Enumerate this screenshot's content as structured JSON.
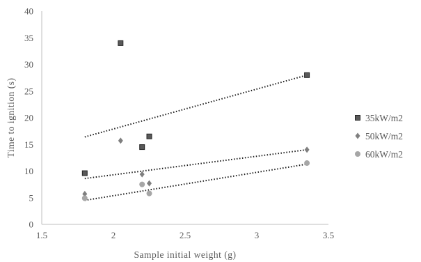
{
  "chart_data": {
    "type": "scatter",
    "title": "",
    "xlabel": "Sample initial weight (g)",
    "ylabel": "Time to ignition (s)",
    "xlim": [
      1.5,
      3.5
    ],
    "ylim": [
      0,
      40
    ],
    "x_ticks": [
      "1.5",
      "2",
      "2.5",
      "3",
      "3.5"
    ],
    "y_ticks": [
      "0",
      "5",
      "10",
      "15",
      "20",
      "25",
      "30",
      "35",
      "40"
    ],
    "grid": false,
    "legend_position": "right",
    "trendlines": "linear, dotted",
    "series": [
      {
        "name": "35kW/m2",
        "marker": "square",
        "color": "#595959",
        "x": [
          1.8,
          2.05,
          2.2,
          2.25,
          3.35
        ],
        "y": [
          9.6,
          34,
          14.5,
          16.5,
          28
        ],
        "trend": [
          [
            1.8,
            16.4
          ],
          [
            3.35,
            28
          ]
        ]
      },
      {
        "name": "50kW/m2",
        "marker": "diamond",
        "color": "#7f7f7f",
        "x": [
          1.8,
          2.05,
          2.2,
          2.25,
          3.35
        ],
        "y": [
          5.7,
          15.7,
          9.4,
          7.7,
          14
        ],
        "trend": [
          [
            1.8,
            8.6
          ],
          [
            3.35,
            14
          ]
        ]
      },
      {
        "name": "60kW/m2",
        "marker": "circle",
        "color": "#a6a6a6",
        "x": [
          1.8,
          2.2,
          2.25,
          3.35
        ],
        "y": [
          4.9,
          7.5,
          5.8,
          11.5
        ],
        "trend": [
          [
            1.8,
            4.5
          ],
          [
            3.35,
            11.3
          ]
        ]
      }
    ]
  }
}
